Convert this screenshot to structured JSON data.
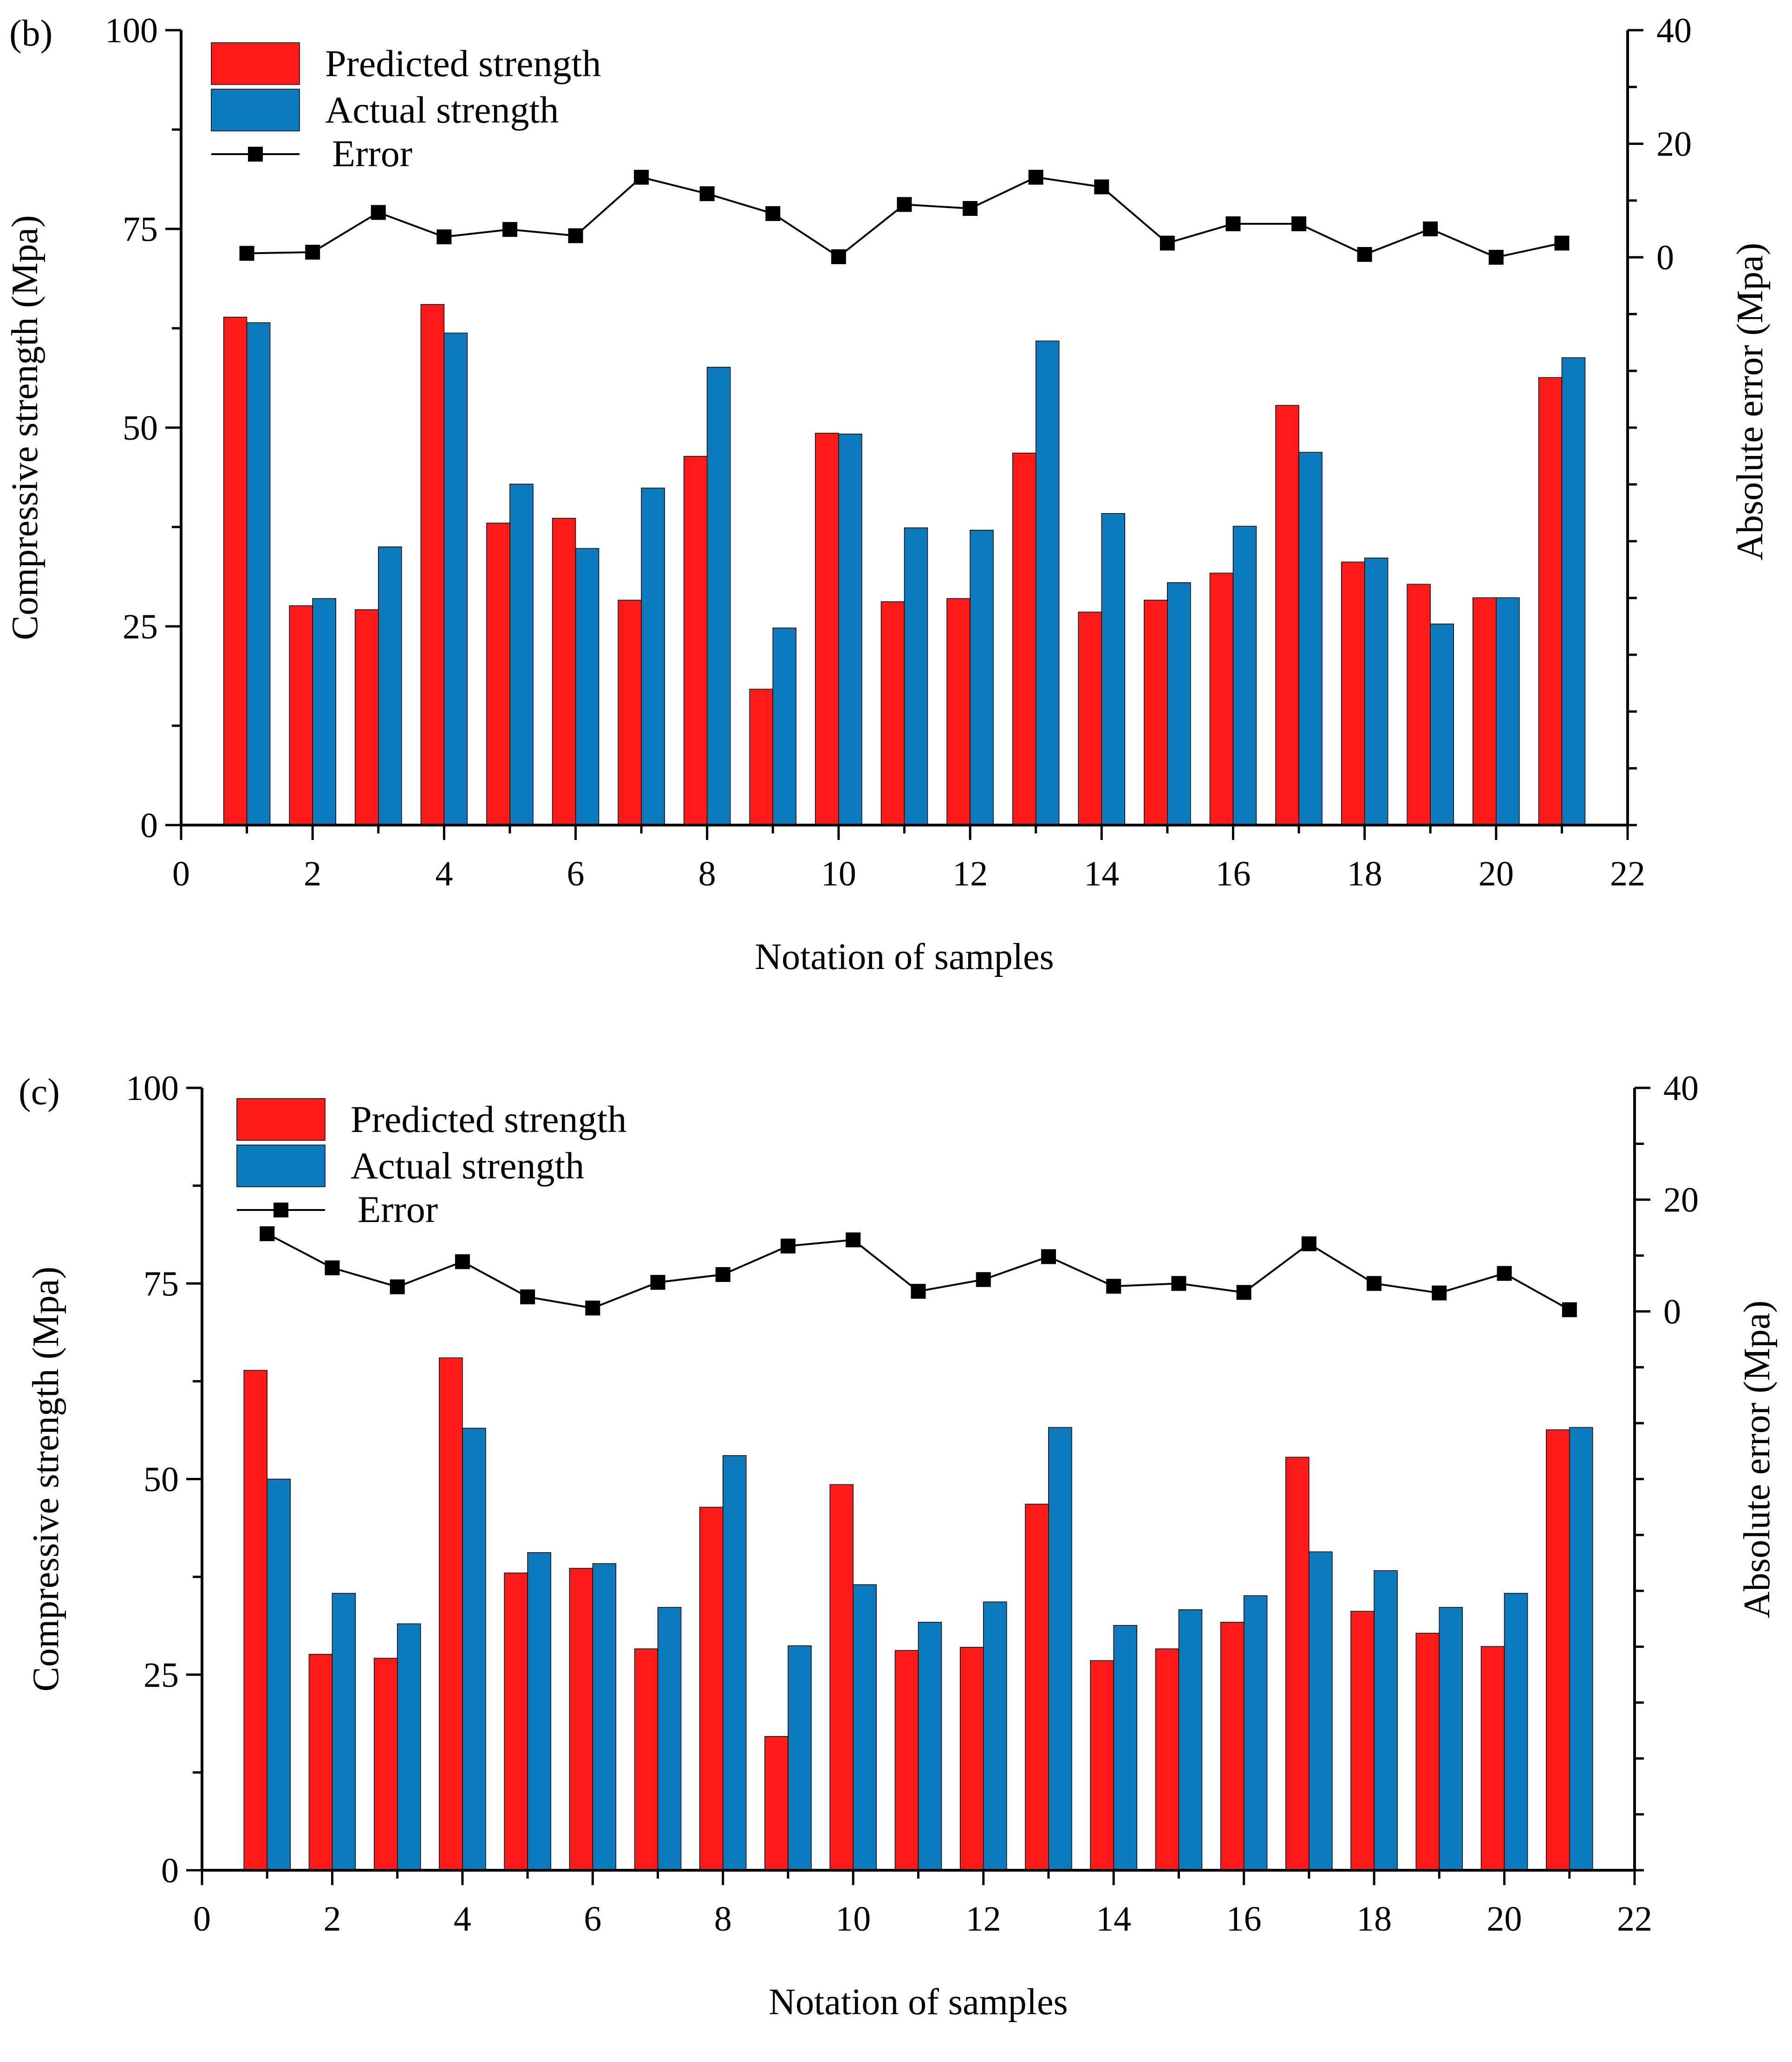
{
  "chart_data": [
    {
      "type": "bar",
      "panel_label": "(b)",
      "x": [
        1,
        2,
        3,
        4,
        5,
        6,
        7,
        8,
        9,
        10,
        11,
        12,
        13,
        14,
        15,
        16,
        17,
        18,
        19,
        20,
        21
      ],
      "xlim": [
        0,
        22
      ],
      "xticks": [
        "0",
        "2",
        "4",
        "6",
        "8",
        "10",
        "12",
        "14",
        "16",
        "18",
        "20",
        "22"
      ],
      "ylim": [
        0,
        100
      ],
      "yticks": [
        "0",
        "25",
        "50",
        "75",
        "100"
      ],
      "y2lim": [
        -100,
        40
      ],
      "y2ticks": [
        "0",
        "20",
        "40"
      ],
      "xlabel": "Notation of samples",
      "ylabel": "Compressive strength (Mpa)",
      "y2label": "Absolute error (Mpa)",
      "legend": {
        "predicted": "Predicted strength",
        "actual": "Actual strength",
        "error": "Error",
        "position": "top-left"
      },
      "series": [
        {
          "name": "Predicted strength",
          "color": "#ff1a1a",
          "values": [
            63.9,
            27.6,
            27.1,
            65.5,
            38.0,
            38.6,
            28.3,
            46.4,
            17.1,
            49.3,
            28.1,
            28.5,
            46.8,
            26.8,
            28.3,
            31.7,
            52.8,
            33.1,
            30.3,
            28.6,
            56.3
          ]
        },
        {
          "name": "Actual strength",
          "color": "#0c7bbd",
          "values": [
            63.2,
            28.5,
            35.0,
            61.9,
            42.9,
            34.8,
            42.4,
            57.6,
            24.8,
            49.2,
            37.4,
            37.1,
            60.9,
            39.2,
            30.5,
            37.6,
            46.9,
            33.6,
            25.3,
            28.6,
            58.8
          ]
        },
        {
          "name": "Error",
          "axis": "right",
          "color": "#000000",
          "values": [
            0.7,
            0.9,
            7.9,
            3.6,
            4.9,
            3.8,
            14.1,
            11.2,
            7.7,
            0.1,
            9.3,
            8.6,
            14.1,
            12.4,
            2.5,
            5.9,
            5.9,
            0.5,
            5.0,
            0.0,
            2.5
          ]
        }
      ]
    },
    {
      "type": "bar",
      "panel_label": "(c)",
      "x": [
        1,
        2,
        3,
        4,
        5,
        6,
        7,
        8,
        9,
        10,
        11,
        12,
        13,
        14,
        15,
        16,
        17,
        18,
        19,
        20,
        21
      ],
      "xlim": [
        0,
        22
      ],
      "xticks": [
        "0",
        "2",
        "4",
        "6",
        "8",
        "10",
        "12",
        "14",
        "16",
        "18",
        "20",
        "22"
      ],
      "ylim": [
        0,
        100
      ],
      "yticks": [
        "0",
        "25",
        "50",
        "75",
        "100"
      ],
      "y2lim": [
        -100,
        40
      ],
      "y2ticks": [
        "0",
        "20",
        "40"
      ],
      "xlabel": "Notation of samples",
      "ylabel": "Compressive strength (Mpa)",
      "y2label": "Absolute error (Mpa)",
      "legend": {
        "predicted": "Predicted strength",
        "actual": "Actual strength",
        "error": "Error",
        "position": "top-left"
      },
      "series": [
        {
          "name": "Predicted strength",
          "color": "#ff1a1a",
          "values": [
            63.9,
            27.6,
            27.1,
            65.5,
            38.0,
            38.6,
            28.3,
            46.4,
            17.1,
            49.3,
            28.1,
            28.5,
            46.8,
            26.8,
            28.3,
            31.7,
            52.8,
            33.1,
            30.3,
            28.6,
            56.3
          ]
        },
        {
          "name": "Actual strength",
          "color": "#0c7bbd",
          "values": [
            50.0,
            35.4,
            31.5,
            56.5,
            40.6,
            39.2,
            33.6,
            53.0,
            28.7,
            36.5,
            31.7,
            34.3,
            56.6,
            31.3,
            33.3,
            35.1,
            40.7,
            38.3,
            33.6,
            35.4,
            56.6
          ]
        },
        {
          "name": "Error",
          "axis": "right",
          "color": "#000000",
          "values": [
            13.9,
            7.8,
            4.4,
            8.9,
            2.6,
            0.6,
            5.2,
            6.6,
            11.7,
            12.8,
            3.6,
            5.7,
            9.8,
            4.5,
            5.0,
            3.4,
            12.1,
            5.0,
            3.3,
            6.8,
            0.3
          ]
        }
      ]
    }
  ]
}
